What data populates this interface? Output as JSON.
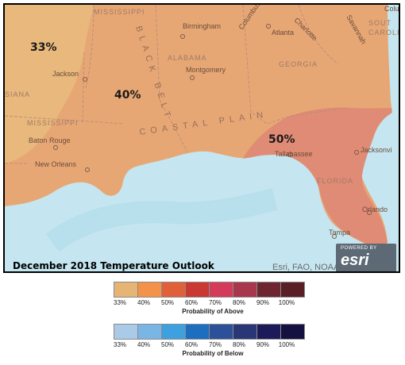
{
  "map": {
    "title": "December 2018 Temperature Outlook",
    "credits": "Esri, FAO, NOAA",
    "badge": {
      "line1": "POWERED BY",
      "line2": "esri"
    },
    "probability_zones": [
      {
        "label": "33%",
        "color": "#e8b87c"
      },
      {
        "label": "40%",
        "color": "#e7a775"
      },
      {
        "label": "50%",
        "color": "#e08b75"
      }
    ],
    "cities": [
      "Birmingham",
      "Atlanta",
      "Jackson",
      "Montgomery",
      "Baton Rouge",
      "New Orleans",
      "Tallahassee",
      "Jacksonvi",
      "Orlando",
      "Tampa",
      "Columbia",
      "Columbus",
      "Charlotte",
      "Savannah"
    ],
    "states": [
      "MISSISSIPPI",
      "ALABAMA",
      "GEORGIA",
      "FLORIDA",
      "SOUT CAROLI",
      "SIANA"
    ],
    "regions": [
      "COASTAL PLAIN",
      "BLACK BELT"
    ]
  },
  "legend_above": {
    "title": "Probability of Above",
    "colors": [
      "#e6b574",
      "#f4924c",
      "#e0603a",
      "#c93831",
      "#d43b5a",
      "#a8364c",
      "#6e2530",
      "#5a1e25"
    ],
    "ticks": [
      "33%",
      "40%",
      "50%",
      "60%",
      "70%",
      "80%",
      "90%",
      "100%"
    ]
  },
  "legend_below": {
    "title": "Probability of Below",
    "colors": [
      "#a9cbe7",
      "#7ab6e3",
      "#3fa0e0",
      "#1e6ebf",
      "#2c5199",
      "#2a3777",
      "#1d1a5a",
      "#14103f"
    ],
    "ticks": [
      "33%",
      "40%",
      "50%",
      "60%",
      "70%",
      "80%",
      "90%",
      "100%"
    ]
  }
}
